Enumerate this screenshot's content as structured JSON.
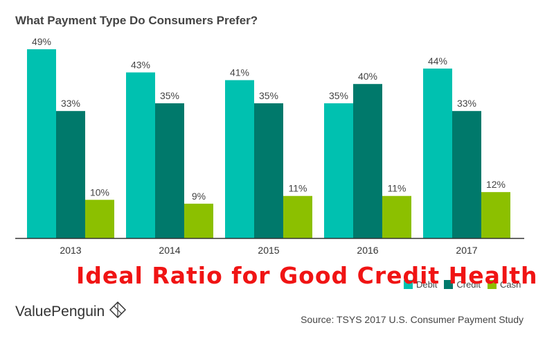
{
  "chart_data": {
    "type": "bar",
    "title": "What Payment Type Do Consumers Prefer?",
    "categories": [
      "2013",
      "2014",
      "2015",
      "2016",
      "2017"
    ],
    "series": [
      {
        "name": "Debit",
        "color": "#00c1b0",
        "values": [
          49,
          43,
          41,
          35,
          44
        ]
      },
      {
        "name": "Credit",
        "color": "#00796b",
        "values": [
          33,
          35,
          35,
          40,
          33
        ]
      },
      {
        "name": "Cash",
        "color": "#8cc000",
        "values": [
          10,
          9,
          11,
          11,
          12
        ]
      }
    ],
    "value_suffix": "%",
    "ylim": [
      0,
      50
    ],
    "grid": false,
    "legend_position": "bottom-right"
  },
  "legend": {
    "items": [
      {
        "label": "Debit",
        "color": "#00c1b0"
      },
      {
        "label": "Credit",
        "color": "#00796b"
      },
      {
        "label": "Cash",
        "color": "#8cc000"
      }
    ]
  },
  "overlay_text": "Ideal Ratio for Good Credit Health",
  "brand": {
    "name": "ValuePenguin",
    "icon": "valuepenguin-logo-icon"
  },
  "source": "Source: TSYS 2017 U.S. Consumer Payment Study"
}
